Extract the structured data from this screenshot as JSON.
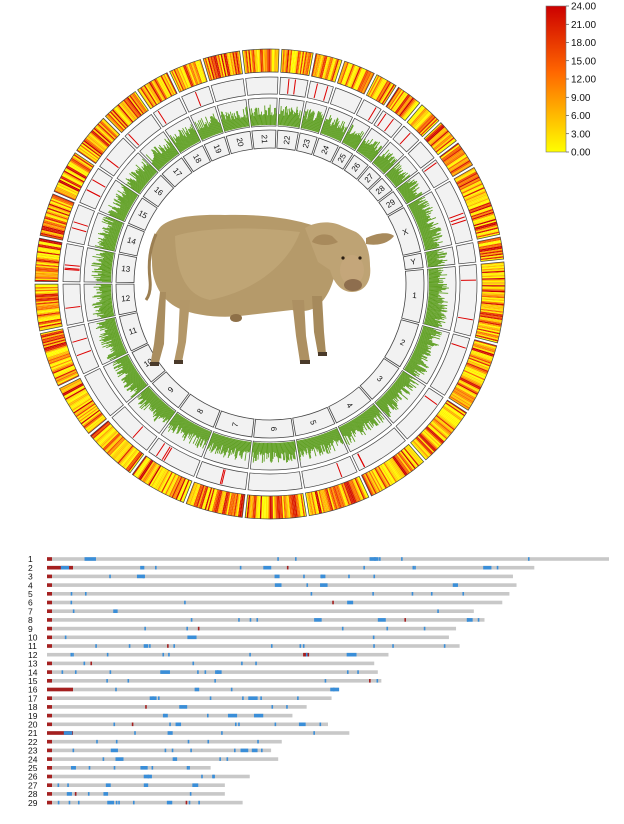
{
  "circos": {
    "chromosomes": [
      {
        "label": "1",
        "rel_len": 158
      },
      {
        "label": "2",
        "rel_len": 137
      },
      {
        "label": "3",
        "rel_len": 121
      },
      {
        "label": "4",
        "rel_len": 121
      },
      {
        "label": "5",
        "rel_len": 121
      },
      {
        "label": "6",
        "rel_len": 119
      },
      {
        "label": "7",
        "rel_len": 112
      },
      {
        "label": "8",
        "rel_len": 113
      },
      {
        "label": "9",
        "rel_len": 105
      },
      {
        "label": "10",
        "rel_len": 104
      },
      {
        "label": "11",
        "rel_len": 107
      },
      {
        "label": "12",
        "rel_len": 91
      },
      {
        "label": "13",
        "rel_len": 84
      },
      {
        "label": "14",
        "rel_len": 84
      },
      {
        "label": "15",
        "rel_len": 85
      },
      {
        "label": "16",
        "rel_len": 81
      },
      {
        "label": "17",
        "rel_len": 75
      },
      {
        "label": "18",
        "rel_len": 66
      },
      {
        "label": "19",
        "rel_len": 64
      },
      {
        "label": "20",
        "rel_len": 72
      },
      {
        "label": "21",
        "rel_len": 71
      },
      {
        "label": "22",
        "rel_len": 61
      },
      {
        "label": "23",
        "rel_len": 52
      },
      {
        "label": "24",
        "rel_len": 62
      },
      {
        "label": "25",
        "rel_len": 43
      },
      {
        "label": "26",
        "rel_len": 51
      },
      {
        "label": "27",
        "rel_len": 45
      },
      {
        "label": "28",
        "rel_len": 46
      },
      {
        "label": "29",
        "rel_len": 51
      },
      {
        "label": "X",
        "rel_len": 139
      },
      {
        "label": "Y",
        "rel_len": 43
      }
    ],
    "colors": {
      "heat_low": "#ffff00",
      "heat_mid": "#ff9900",
      "heat_high": "#cc0000",
      "density": "#5c9e1e",
      "marker": "#dd0000",
      "outline": "#444444",
      "ring_fill": "#f2f2f2"
    },
    "center_image": "cow-photo"
  },
  "legend": {
    "ticks": [
      "24.00",
      "21.00",
      "18.00",
      "15.00",
      "12.00",
      "9.00",
      "6.00",
      "3.00",
      "0.00"
    ],
    "min": 0,
    "max": 24
  },
  "bars": {
    "rows": [
      {
        "label": "1",
        "len": 158
      },
      {
        "label": "2",
        "len": 137
      },
      {
        "label": "3",
        "len": 131
      },
      {
        "label": "4",
        "len": 132
      },
      {
        "label": "5",
        "len": 130
      },
      {
        "label": "6",
        "len": 128
      },
      {
        "label": "7",
        "len": 120
      },
      {
        "label": "8",
        "len": 123
      },
      {
        "label": "9",
        "len": 115
      },
      {
        "label": "10",
        "len": 113
      },
      {
        "label": "11",
        "len": 116
      },
      {
        "label": "12",
        "len": 96
      },
      {
        "label": "13",
        "len": 92
      },
      {
        "label": "14",
        "len": 93
      },
      {
        "label": "15",
        "len": 94
      },
      {
        "label": "16",
        "len": 82
      },
      {
        "label": "17",
        "len": 80
      },
      {
        "label": "18",
        "len": 73
      },
      {
        "label": "19",
        "len": 69
      },
      {
        "label": "20",
        "len": 79
      },
      {
        "label": "21",
        "len": 85
      },
      {
        "label": "22",
        "len": 66
      },
      {
        "label": "23",
        "len": 63
      },
      {
        "label": "24",
        "len": 65
      },
      {
        "label": "25",
        "len": 46
      },
      {
        "label": "26",
        "len": 57
      },
      {
        "label": "27",
        "len": 50
      },
      {
        "label": "28",
        "len": 50
      },
      {
        "label": "29",
        "len": 55
      }
    ],
    "colors": {
      "bar": "#c8c8c8",
      "centromere": "#a52020",
      "marker": "#3a8ed8"
    }
  }
}
